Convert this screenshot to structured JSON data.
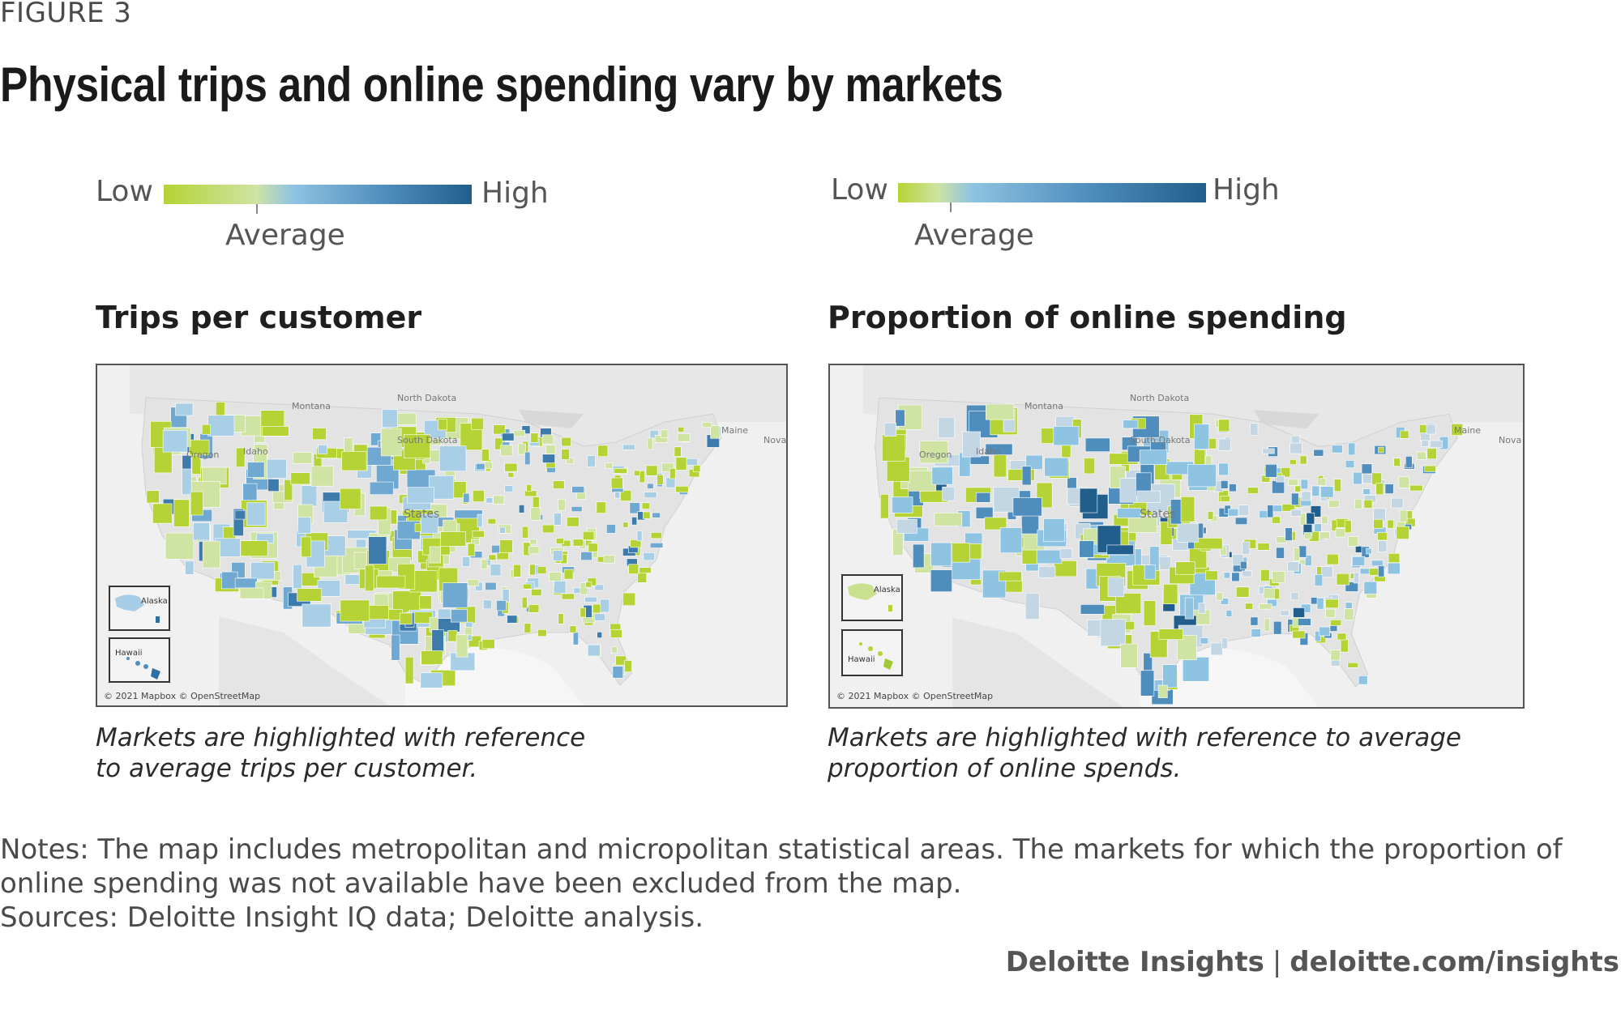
{
  "figure_label": "FIGURE 3",
  "title": "Physical trips and online spending vary by markets",
  "legend": {
    "low": "Low",
    "high": "High",
    "average": "Average",
    "colors": [
      "#b5d334",
      "#cfe3a3",
      "#8ec3e2",
      "#4f8dbd",
      "#225e8b"
    ]
  },
  "panels": [
    {
      "title": "Trips per customer",
      "caption_line1": "Markets are highlighted with reference",
      "caption_line2": "to average trips per customer.",
      "credit": "© 2021 Mapbox © OpenStreetMap",
      "inset_alaska": "Alaska",
      "inset_hawaii": "Hawaii",
      "map_labels": [
        "Montana",
        "North Dakota",
        "South Dakota",
        "States",
        "Oregon",
        "Idaho",
        "Maine",
        "Nova"
      ]
    },
    {
      "title": "Proportion of online spending",
      "caption_line1": "Markets are highlighted with reference to average",
      "caption_line2": "proportion of online spends.",
      "credit": "© 2021 Mapbox © OpenStreetMap",
      "inset_alaska": "Alaska",
      "inset_hawaii": "Hawaii",
      "map_labels": [
        "Montana",
        "North Dakota",
        "South Dakota",
        "States",
        "Oregon",
        "Idaho",
        "Maine",
        "Nova"
      ]
    }
  ],
  "notes": "Notes: The map includes metropolitan and micropolitan statistical areas. The markets for which the proportion of online spending was not available have been excluded from the map.",
  "sources": "Sources: Deloitte Insight IQ data; Deloitte analysis.",
  "footer": {
    "brand": "Deloitte Insights",
    "separator": "|",
    "url": "deloitte.com/insights"
  }
}
